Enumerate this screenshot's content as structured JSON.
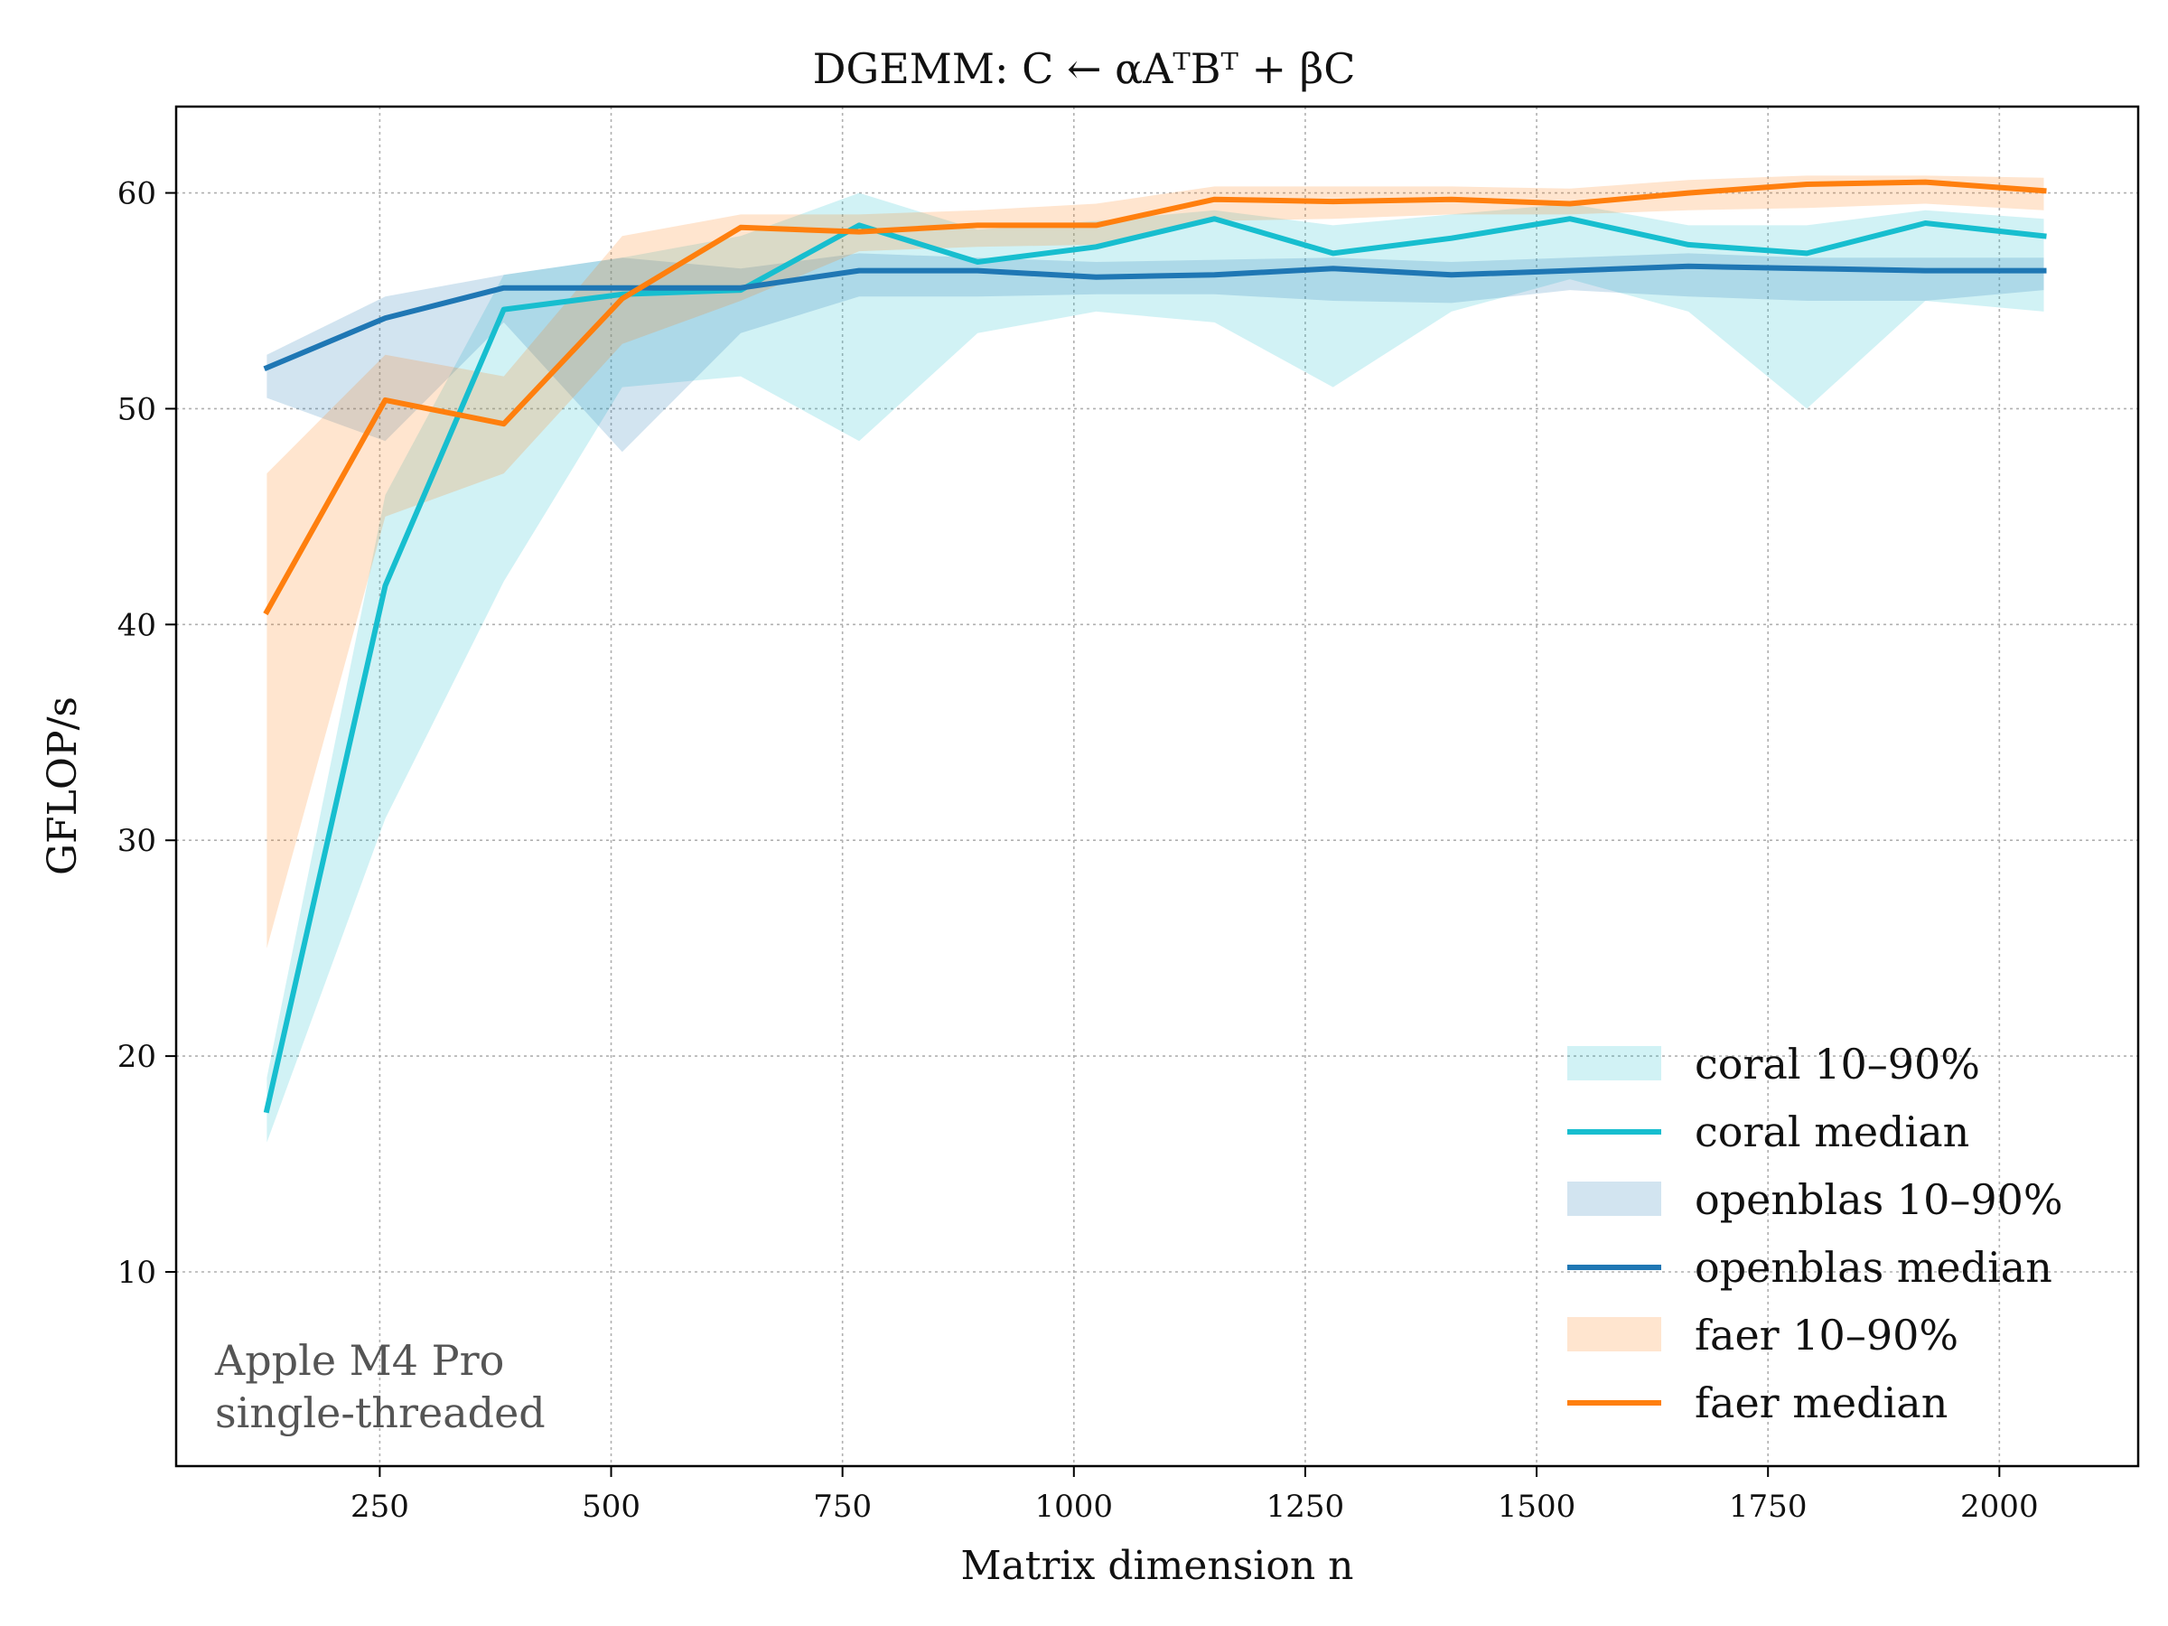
{
  "chart_data": {
    "type": "line",
    "title": "DGEMM: C ← αAᵀBᵀ + βC",
    "xlabel": "Matrix dimension n",
    "ylabel": "GFLOP/s",
    "xlim": [
      30,
      2150
    ],
    "ylim": [
      1,
      64
    ],
    "xticks": [
      250,
      500,
      750,
      1000,
      1250,
      1500,
      1750,
      2000
    ],
    "yticks": [
      10,
      20,
      30,
      40,
      50,
      60
    ],
    "grid": true,
    "legend_position": "lower-right",
    "annotation": [
      "Apple M4 Pro",
      "single-threaded"
    ],
    "x": [
      128,
      256,
      384,
      512,
      640,
      768,
      896,
      1024,
      1152,
      1280,
      1408,
      1536,
      1664,
      1792,
      1920,
      2048
    ],
    "series": [
      {
        "name": "coral",
        "median_label": "coral median",
        "band_label": "coral 10–90%",
        "color": "#17becf",
        "band_color": "#bfeef4",
        "median": [
          17.5,
          41.8,
          54.6,
          55.3,
          55.5,
          58.5,
          56.8,
          57.5,
          58.8,
          57.2,
          57.9,
          58.8,
          57.6,
          57.2,
          58.6,
          58.0
        ],
        "p10": [
          16.0,
          31.0,
          42.0,
          51.0,
          51.5,
          48.5,
          53.5,
          54.5,
          54.0,
          51.0,
          54.5,
          56.0,
          54.5,
          50.0,
          55.0,
          54.5
        ],
        "p90": [
          19.0,
          46.0,
          56.2,
          57.0,
          58.0,
          60.0,
          58.3,
          58.7,
          59.2,
          58.5,
          59.0,
          59.5,
          58.5,
          58.5,
          59.2,
          58.8
        ]
      },
      {
        "name": "openblas",
        "median_label": "openblas median",
        "band_label": "openblas 10–90%",
        "color": "#1f77b4",
        "band_color": "#c8dced",
        "median": [
          51.9,
          54.2,
          55.6,
          55.6,
          55.6,
          56.4,
          56.4,
          56.1,
          56.2,
          56.5,
          56.2,
          56.4,
          56.6,
          56.5,
          56.4,
          56.4
        ],
        "p10": [
          50.5,
          48.5,
          54.0,
          48.0,
          53.5,
          55.2,
          55.2,
          55.3,
          55.3,
          55.0,
          54.9,
          55.5,
          55.2,
          55.0,
          55.0,
          55.5
        ],
        "p90": [
          52.5,
          55.2,
          56.2,
          57.0,
          56.5,
          57.2,
          57.0,
          56.8,
          56.9,
          57.0,
          56.8,
          57.0,
          57.2,
          57.0,
          57.0,
          57.0
        ]
      },
      {
        "name": "faer",
        "median_label": "faer median",
        "band_label": "faer 10–90%",
        "color": "#ff7f0e",
        "band_color": "#ffdcc0",
        "median": [
          40.6,
          50.4,
          49.3,
          55.1,
          58.4,
          58.2,
          58.5,
          58.5,
          59.7,
          59.6,
          59.7,
          59.5,
          60.0,
          60.4,
          60.5,
          60.1
        ],
        "p10": [
          25.0,
          45.0,
          47.0,
          53.0,
          55.0,
          57.3,
          57.5,
          57.6,
          58.7,
          58.8,
          59.0,
          59.0,
          59.2,
          59.3,
          59.5,
          59.2
        ],
        "p90": [
          47.0,
          52.5,
          51.5,
          58.0,
          59.0,
          59.0,
          59.2,
          59.5,
          60.3,
          60.3,
          60.3,
          60.2,
          60.6,
          60.8,
          60.8,
          60.7
        ]
      }
    ]
  }
}
